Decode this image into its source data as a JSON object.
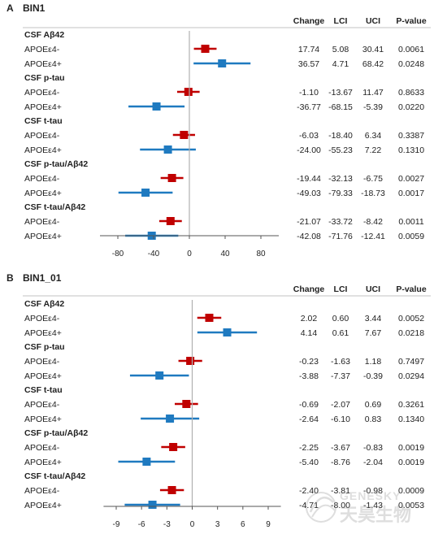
{
  "chart_data": [
    {
      "type": "forest",
      "panel_letter": "A",
      "title": "BIN1",
      "columns": [
        "Change",
        "LCI",
        "UCI",
        "P-value"
      ],
      "xlim": [
        -100,
        100
      ],
      "xticks": [
        -80,
        -40,
        0,
        40,
        80
      ],
      "groups": [
        {
          "label": "CSF  Aβ42",
          "rows": [
            {
              "label": "APOEε4-",
              "change": "17.74",
              "lci": "5.08",
              "uci": "30.41",
              "p": "0.0061",
              "color": "#c00000"
            },
            {
              "label": "APOEε4+",
              "change": "36.57",
              "lci": "4.71",
              "uci": "68.42",
              "p": "0.0248",
              "color": "#1f7ac0"
            }
          ]
        },
        {
          "label": "CSF  p-tau",
          "rows": [
            {
              "label": "APOEε4-",
              "change": "-1.10",
              "lci": "-13.67",
              "uci": "11.47",
              "p": "0.8633",
              "color": "#c00000"
            },
            {
              "label": "APOEε4+",
              "change": "-36.77",
              "lci": "-68.15",
              "uci": "-5.39",
              "p": "0.0220",
              "color": "#1f7ac0"
            }
          ]
        },
        {
          "label": "CSF  t-tau",
          "rows": [
            {
              "label": "APOEε4-",
              "change": "-6.03",
              "lci": "-18.40",
              "uci": "6.34",
              "p": "0.3387",
              "color": "#c00000"
            },
            {
              "label": "APOEε4+",
              "change": "-24.00",
              "lci": "-55.23",
              "uci": "7.22",
              "p": "0.1310",
              "color": "#1f7ac0"
            }
          ]
        },
        {
          "label": "CSF  p-tau/Aβ42",
          "rows": [
            {
              "label": "APOEε4-",
              "change": "-19.44",
              "lci": "-32.13",
              "uci": "-6.75",
              "p": "0.0027",
              "color": "#c00000"
            },
            {
              "label": "APOEε4+",
              "change": "-49.03",
              "lci": "-79.33",
              "uci": "-18.73",
              "p": "0.0017",
              "color": "#1f7ac0"
            }
          ]
        },
        {
          "label": "CSF  t-tau/Aβ42",
          "rows": [
            {
              "label": "APOEε4-",
              "change": "-21.07",
              "lci": "-33.72",
              "uci": "-8.42",
              "p": "0.0011",
              "color": "#c00000"
            },
            {
              "label": "APOEε4+",
              "change": "-42.08",
              "lci": "-71.76",
              "uci": "-12.41",
              "p": "0.0059",
              "color": "#1f7ac0"
            }
          ]
        }
      ]
    },
    {
      "type": "forest",
      "panel_letter": "B",
      "title": "BIN1_01",
      "columns": [
        "Change",
        "LCI",
        "UCI",
        "P-value"
      ],
      "xlim": [
        -10.5,
        10.5
      ],
      "xticks": [
        -9,
        -6,
        -3,
        0,
        3,
        6,
        9
      ],
      "groups": [
        {
          "label": "CSF  Aβ42",
          "rows": [
            {
              "label": "APOEε4-",
              "change": "2.02",
              "lci": "0.60",
              "uci": "3.44",
              "p": "0.0052",
              "color": "#c00000"
            },
            {
              "label": "APOEε4+",
              "change": "4.14",
              "lci": "0.61",
              "uci": "7.67",
              "p": "0.0218",
              "color": "#1f7ac0"
            }
          ]
        },
        {
          "label": "CSF  p-tau",
          "rows": [
            {
              "label": "APOEε4-",
              "change": "-0.23",
              "lci": "-1.63",
              "uci": "1.18",
              "p": "0.7497",
              "color": "#c00000"
            },
            {
              "label": "APOEε4+",
              "change": "-3.88",
              "lci": "-7.37",
              "uci": "-0.39",
              "p": "0.0294",
              "color": "#1f7ac0"
            }
          ]
        },
        {
          "label": "CSF  t-tau",
          "rows": [
            {
              "label": "APOEε4-",
              "change": "-0.69",
              "lci": "-2.07",
              "uci": "0.69",
              "p": "0.3261",
              "color": "#c00000"
            },
            {
              "label": "APOEε4+",
              "change": "-2.64",
              "lci": "-6.10",
              "uci": "0.83",
              "p": "0.1340",
              "color": "#1f7ac0"
            }
          ]
        },
        {
          "label": "CSF  p-tau/Aβ42",
          "rows": [
            {
              "label": "APOEε4-",
              "change": "-2.25",
              "lci": "-3.67",
              "uci": "-0.83",
              "p": "0.0019",
              "color": "#c00000"
            },
            {
              "label": "APOEε4+",
              "change": "-5.40",
              "lci": "-8.76",
              "uci": "-2.04",
              "p": "0.0019",
              "color": "#1f7ac0"
            }
          ]
        },
        {
          "label": "CSF  t-tau/Aβ42",
          "rows": [
            {
              "label": "APOEε4-",
              "change": "-2.40",
              "lci": "-3.81",
              "uci": "-0.98",
              "p": "0.0009",
              "color": "#c00000"
            },
            {
              "label": "APOEε4+",
              "change": "-4.71",
              "lci": "-8.00",
              "uci": "-1.43",
              "p": "0.0053",
              "color": "#1f7ac0"
            }
          ]
        }
      ]
    }
  ],
  "watermark": {
    "latin": "GENESKY",
    "cjk": "天昊生物"
  }
}
